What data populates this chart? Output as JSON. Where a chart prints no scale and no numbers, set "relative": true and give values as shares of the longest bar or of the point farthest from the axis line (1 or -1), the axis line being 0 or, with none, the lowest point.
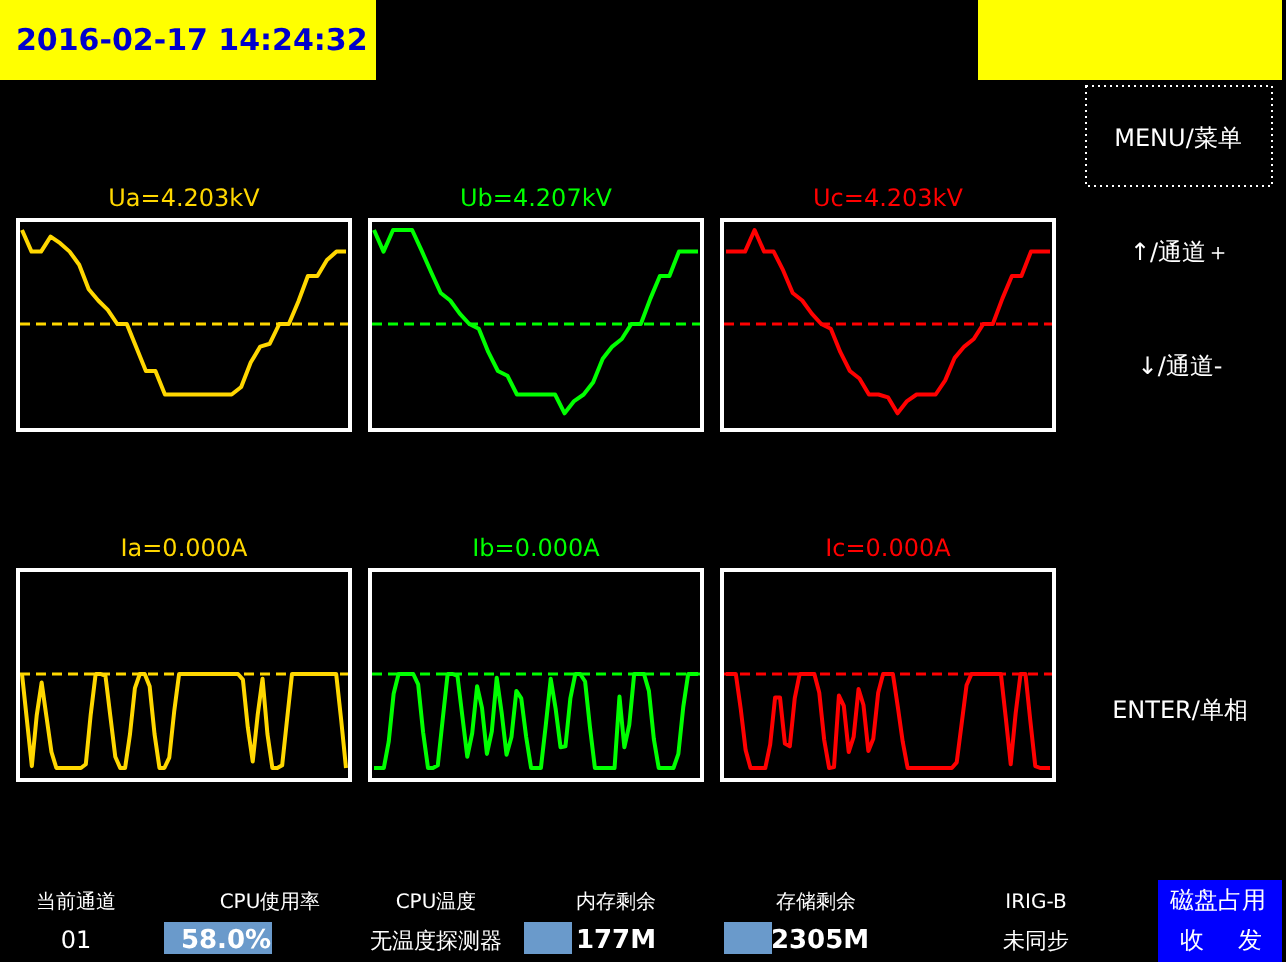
{
  "chart_data": [
    {
      "type": "line",
      "title": "Ua=4.203kV",
      "relative": true,
      "line_style": "solid",
      "ref_lines": [
        {
          "axis": "y",
          "value": 0,
          "color": "#ffd700",
          "line_style": "dashed"
        }
      ],
      "categories": [
        null,
        null,
        null,
        null,
        null,
        null,
        null,
        null,
        null,
        null,
        null,
        null,
        null,
        null,
        null,
        null,
        null,
        null,
        null,
        null,
        null,
        null,
        null,
        null,
        null,
        null,
        null,
        null,
        null,
        null,
        null,
        null,
        null,
        null,
        null
      ],
      "series": [
        {
          "color": "#ffd700",
          "values": [
            1,
            0.77,
            0.77,
            0.93,
            0.86,
            0.77,
            0.63,
            0.37,
            0.25,
            0.15,
            0,
            0,
            -0.25,
            -0.5,
            -0.5,
            -0.75,
            -0.75,
            -0.75,
            -0.75,
            -0.75,
            -0.75,
            -0.75,
            -0.75,
            -0.67,
            -0.41,
            -0.24,
            -0.21,
            0,
            0,
            0.24,
            0.51,
            0.51,
            0.68,
            0.77,
            0.77
          ]
        }
      ]
    },
    {
      "type": "line",
      "title": "Ub=4.207kV",
      "relative": true,
      "line_style": "solid",
      "ref_lines": [
        {
          "axis": "y",
          "value": 0,
          "color": "#00ff00",
          "line_style": "dashed"
        }
      ],
      "categories": [
        null,
        null,
        null,
        null,
        null,
        null,
        null,
        null,
        null,
        null,
        null,
        null,
        null,
        null,
        null,
        null,
        null,
        null,
        null,
        null,
        null,
        null,
        null,
        null,
        null,
        null,
        null,
        null,
        null,
        null,
        null,
        null,
        null,
        null,
        null
      ],
      "series": [
        {
          "color": "#00ff00",
          "values": [
            1,
            0.77,
            1,
            1,
            1,
            0.78,
            0.55,
            0.33,
            0.25,
            0.11,
            0,
            -0.05,
            -0.3,
            -0.5,
            -0.55,
            -0.75,
            -0.75,
            -0.75,
            -0.75,
            -0.75,
            -0.95,
            -0.82,
            -0.75,
            -0.62,
            -0.37,
            -0.24,
            -0.16,
            0,
            0,
            0.27,
            0.51,
            0.51,
            0.77,
            0.77,
            0.77
          ]
        }
      ]
    },
    {
      "type": "line",
      "title": "Uc=4.203kV",
      "relative": true,
      "line_style": "solid",
      "ref_lines": [
        {
          "axis": "y",
          "value": 0,
          "color": "#ff0000",
          "line_style": "dashed"
        }
      ],
      "categories": [
        null,
        null,
        null,
        null,
        null,
        null,
        null,
        null,
        null,
        null,
        null,
        null,
        null,
        null,
        null,
        null,
        null,
        null,
        null,
        null,
        null,
        null,
        null,
        null,
        null,
        null,
        null,
        null,
        null,
        null,
        null,
        null,
        null,
        null,
        null
      ],
      "series": [
        {
          "color": "#ff0000",
          "values": [
            0.77,
            0.77,
            0.77,
            1,
            0.77,
            0.77,
            0.57,
            0.33,
            0.25,
            0.11,
            0,
            -0.05,
            -0.3,
            -0.5,
            -0.58,
            -0.75,
            -0.75,
            -0.78,
            -0.95,
            -0.82,
            -0.75,
            -0.75,
            -0.75,
            -0.6,
            -0.36,
            -0.24,
            -0.16,
            0,
            0,
            0.27,
            0.51,
            0.51,
            0.77,
            0.77,
            0.77
          ]
        }
      ]
    },
    {
      "type": "line",
      "title": "Ia=0.000A",
      "relative": true,
      "line_style": "solid",
      "ref_lines": [
        {
          "axis": "y",
          "value": 0,
          "color": "#ffd700",
          "line_style": "dashed"
        }
      ],
      "categories": [
        null,
        null,
        null,
        null,
        null,
        null,
        null,
        null,
        null,
        null,
        null,
        null,
        null,
        null,
        null,
        null,
        null,
        null,
        null,
        null,
        null,
        null,
        null,
        null,
        null,
        null,
        null,
        null,
        null,
        null,
        null,
        null,
        null,
        null,
        null,
        null,
        null,
        null,
        null,
        null,
        null,
        null,
        null,
        null,
        null,
        null,
        null,
        null,
        null,
        null,
        null,
        null,
        null,
        null,
        null,
        null,
        null,
        null,
        null,
        null,
        null,
        null,
        null,
        null,
        null,
        null,
        null
      ],
      "series": [
        {
          "color": "#ffd700",
          "values": [
            0,
            -0.49,
            -0.98,
            -0.44,
            -0.09,
            -0.46,
            -0.83,
            -1,
            -1,
            -1,
            -1,
            -1,
            -1,
            -0.96,
            -0.43,
            0,
            0,
            -0.02,
            -0.45,
            -0.88,
            -1,
            -1,
            -0.64,
            -0.15,
            0,
            0,
            -0.13,
            -0.64,
            -1,
            -1,
            -0.89,
            -0.4,
            0,
            0,
            0,
            0,
            0,
            0,
            0,
            0,
            0,
            0,
            0,
            0,
            0,
            -0.06,
            -0.57,
            -0.93,
            -0.44,
            -0.05,
            -0.64,
            -1,
            -1,
            -0.97,
            -0.48,
            0,
            0,
            0,
            0,
            0,
            0,
            0,
            0,
            0,
            0,
            -0.48,
            -1
          ]
        }
      ]
    },
    {
      "type": "line",
      "title": "Ib=0.000A",
      "relative": true,
      "line_style": "solid",
      "ref_lines": [
        {
          "axis": "y",
          "value": 0,
          "color": "#00ff00",
          "line_style": "dashed"
        }
      ],
      "categories": [
        null,
        null,
        null,
        null,
        null,
        null,
        null,
        null,
        null,
        null,
        null,
        null,
        null,
        null,
        null,
        null,
        null,
        null,
        null,
        null,
        null,
        null,
        null,
        null,
        null,
        null,
        null,
        null,
        null,
        null,
        null,
        null,
        null,
        null,
        null,
        null,
        null,
        null,
        null,
        null,
        null,
        null,
        null,
        null,
        null,
        null,
        null,
        null,
        null,
        null,
        null,
        null,
        null,
        null,
        null,
        null,
        null,
        null,
        null,
        null,
        null,
        null,
        null,
        null,
        null,
        null,
        null
      ],
      "series": [
        {
          "color": "#00ff00",
          "values": [
            -1,
            -1,
            -1,
            -0.72,
            -0.21,
            0,
            0,
            0,
            0,
            -0.11,
            -0.62,
            -1,
            -1,
            -0.97,
            -0.48,
            0,
            0,
            -0.02,
            -0.45,
            -0.88,
            -0.63,
            -0.13,
            -0.36,
            -0.85,
            -0.61,
            -0.04,
            -0.41,
            -0.86,
            -0.67,
            -0.18,
            -0.26,
            -0.67,
            -1,
            -1,
            -1,
            -0.54,
            -0.05,
            -0.37,
            -0.78,
            -0.77,
            -0.26,
            0,
            0,
            -0.08,
            -0.57,
            -1,
            -1,
            -1,
            -1,
            -1,
            -0.24,
            -0.78,
            -0.54,
            0,
            0,
            0,
            -0.18,
            -0.69,
            -1,
            -1,
            -1,
            -1,
            -0.85,
            -0.35,
            0,
            0,
            0
          ]
        }
      ]
    },
    {
      "type": "line",
      "title": "Ic=0.000A",
      "relative": true,
      "line_style": "solid",
      "ref_lines": [
        {
          "axis": "y",
          "value": 0,
          "color": "#ff0000",
          "line_style": "dashed"
        }
      ],
      "categories": [
        null,
        null,
        null,
        null,
        null,
        null,
        null,
        null,
        null,
        null,
        null,
        null,
        null,
        null,
        null,
        null,
        null,
        null,
        null,
        null,
        null,
        null,
        null,
        null,
        null,
        null,
        null,
        null,
        null,
        null,
        null,
        null,
        null,
        null,
        null,
        null,
        null,
        null,
        null,
        null,
        null,
        null,
        null,
        null,
        null,
        null,
        null,
        null,
        null,
        null,
        null,
        null,
        null,
        null,
        null,
        null,
        null,
        null,
        null,
        null,
        null,
        null,
        null,
        null,
        null,
        null,
        null
      ],
      "series": [
        {
          "color": "#ff0000",
          "values": [
            0,
            0,
            0,
            -0.37,
            -0.81,
            -1,
            -1,
            -1,
            -1,
            -0.75,
            -0.25,
            -0.25,
            -0.74,
            -0.77,
            -0.26,
            0,
            0,
            0,
            0,
            -0.2,
            -0.7,
            -1,
            -0.99,
            -0.23,
            -0.34,
            -0.83,
            -0.67,
            -0.16,
            -0.33,
            -0.82,
            -0.69,
            -0.2,
            0,
            0,
            0,
            -0.35,
            -0.72,
            -1,
            -1,
            -1,
            -1,
            -1,
            -1,
            -1,
            -1,
            -1,
            -1,
            -0.94,
            -0.53,
            -0.12,
            0,
            0,
            0,
            0,
            0,
            0,
            0,
            -0.47,
            -0.96,
            -0.42,
            0,
            0,
            -0.5,
            -0.98,
            -1,
            -1,
            -1
          ]
        }
      ]
    },
    {
      "type": "other",
      "annotations": [
        "2016-02-17 14:24:32",
        "MENU/菜单",
        "↑/通道＋",
        "↓/通道-",
        "ENTER/单相",
        "当前通道",
        "01",
        "CPU使用率",
        "58.0%",
        "CPU温度",
        "无温度探测器",
        "内存剩余",
        "177M",
        "存储剩余",
        "2305M",
        "IRIG-B",
        "未同步",
        "磁盘占用",
        "收",
        "发"
      ]
    }
  ]
}
